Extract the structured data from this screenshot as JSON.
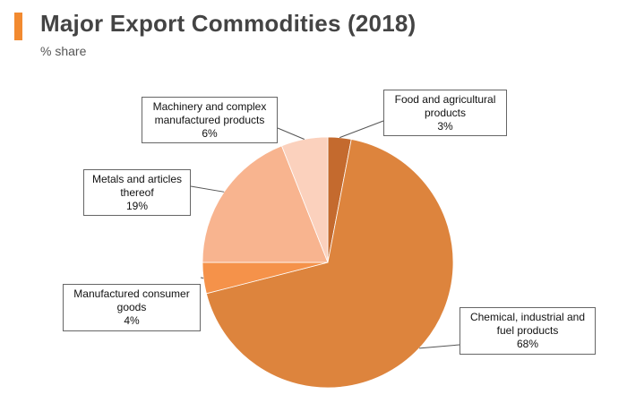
{
  "header": {
    "title": "Major Export Commodities (2018)",
    "subtitle": "% share"
  },
  "chart_data": {
    "type": "pie",
    "title": "Major Export Commodities (2018)",
    "subtitle": "% share",
    "unit": "%",
    "slices": [
      {
        "name": "Food and agricultural products",
        "value": 3,
        "label": "3%",
        "color": "#c46a2e"
      },
      {
        "name": "Chemical, industrial and fuel products",
        "value": 68,
        "label": "68%",
        "color": "#dd843d"
      },
      {
        "name": "Manufactured consumer goods",
        "value": 4,
        "label": "4%",
        "color": "#f5924a"
      },
      {
        "name": "Metals and articles thereof",
        "value": 19,
        "label": "19%",
        "color": "#f8b48f"
      },
      {
        "name": "Machinery and complex manufactured products",
        "value": 6,
        "label": "6%",
        "color": "#fbd1bd"
      }
    ]
  }
}
